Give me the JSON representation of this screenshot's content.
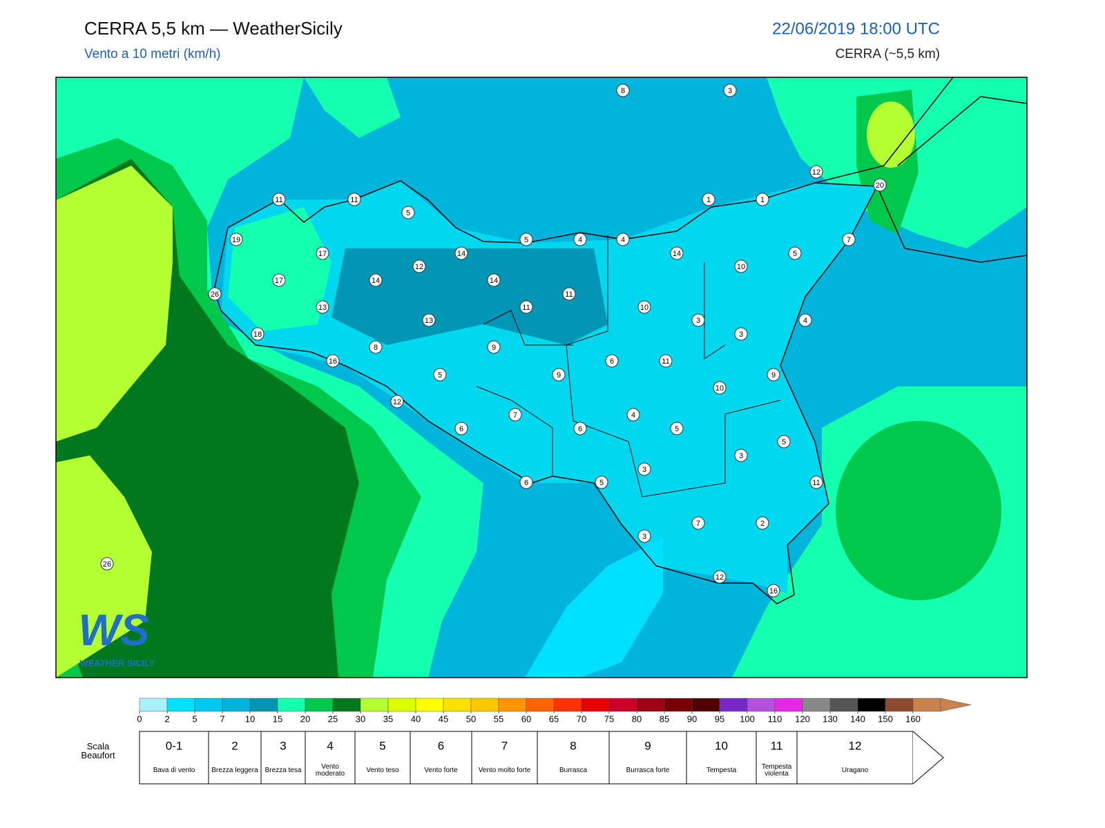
{
  "header": {
    "title": "CERRA 5,5 km — WeatherSicily",
    "subtitle": "Vento a 10 metri (km/h)",
    "datetime": "22/06/2019 18:00 UTC",
    "model": "CERRA (~5,5 km)"
  },
  "stations": [
    8,
    3,
    11,
    11,
    5,
    12,
    20,
    1,
    1,
    19,
    5,
    4,
    4,
    7,
    17,
    14,
    14,
    5,
    12,
    10,
    17,
    14,
    14,
    26,
    11,
    13,
    11,
    10,
    13,
    3,
    4,
    18,
    3,
    8,
    9,
    16,
    6,
    11,
    5,
    9,
    9,
    10,
    12,
    7,
    4,
    6,
    6,
    5,
    5,
    3,
    3,
    6,
    5,
    11,
    7,
    2,
    3,
    12,
    16,
    26
  ],
  "colorbar": {
    "levels": [
      0,
      2,
      5,
      7,
      10,
      15,
      20,
      25,
      30,
      35,
      40,
      45,
      50,
      55,
      60,
      65,
      70,
      75,
      80,
      85,
      90,
      95,
      100,
      110,
      120,
      130,
      140,
      150,
      160
    ],
    "colors": [
      "#aaf0ff",
      "#00e1ff",
      "#00c8f0",
      "#00b4dc",
      "#0096b4",
      "#14ffb0",
      "#00c84b",
      "#00781e",
      "#b4ff32",
      "#dcff00",
      "#ffff00",
      "#ffe100",
      "#ffc800",
      "#ff9600",
      "#ff6400",
      "#ff3200",
      "#e60000",
      "#c80028",
      "#a00014",
      "#780000",
      "#500000",
      "#7828c8",
      "#b450dc",
      "#e628e6",
      "#878787",
      "#555555",
      "#000000",
      "#8b4a2b",
      "#c8824b"
    ]
  },
  "beaufort": {
    "title": "Scala Beaufort",
    "forces": [
      {
        "force": "0-1",
        "desc": "Bava di vento"
      },
      {
        "force": "2",
        "desc": "Brezza leggera"
      },
      {
        "force": "3",
        "desc": "Brezza tesa"
      },
      {
        "force": "4",
        "desc": "Vento moderato"
      },
      {
        "force": "5",
        "desc": "Vento teso"
      },
      {
        "force": "6",
        "desc": "Vento forte"
      },
      {
        "force": "7",
        "desc": "Vento molto forte"
      },
      {
        "force": "8",
        "desc": "Burrasca"
      },
      {
        "force": "9",
        "desc": "Burrasca forte"
      },
      {
        "force": "10",
        "desc": "Tempesta"
      },
      {
        "force": "11",
        "desc": "Tempesta violenta"
      },
      {
        "force": "12",
        "desc": "Uragano"
      }
    ]
  },
  "logo": {
    "mark": "WS",
    "text": "WEATHER SICILY"
  }
}
